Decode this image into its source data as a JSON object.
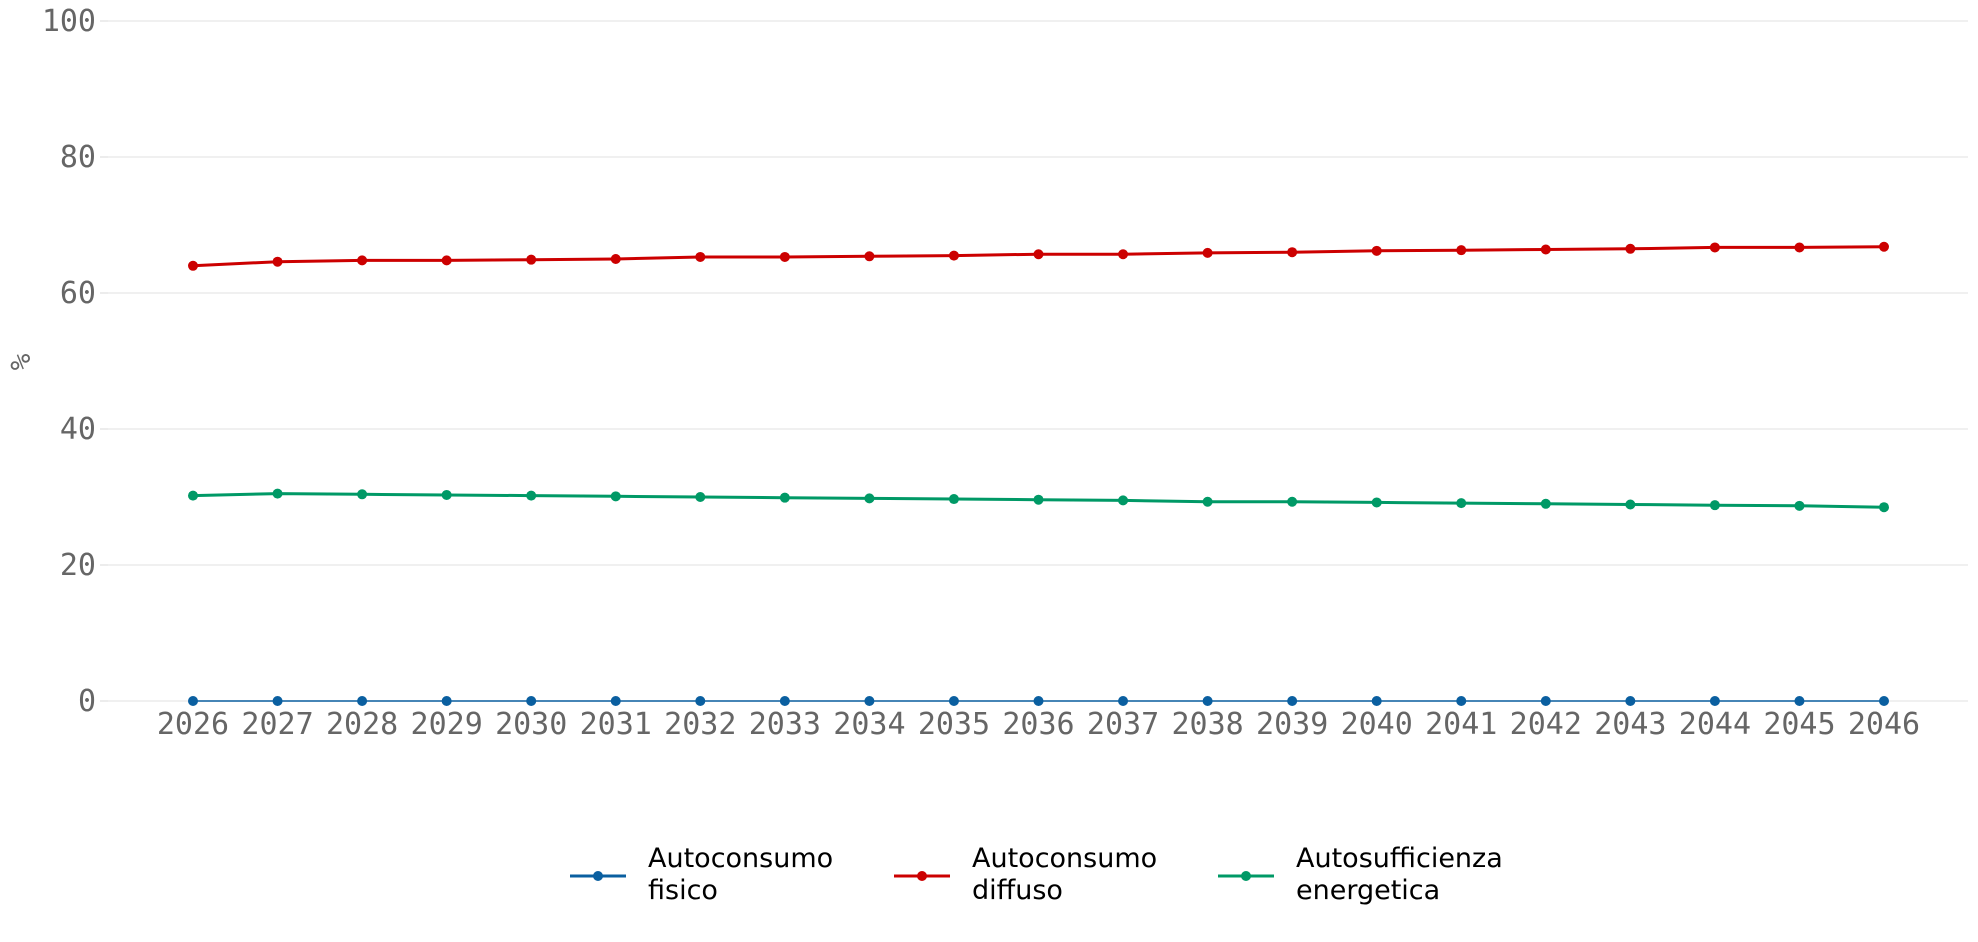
{
  "chart_data": {
    "type": "line",
    "title": "",
    "xlabel": "",
    "ylabel": "%",
    "ylim": [
      0,
      100
    ],
    "yticks": [
      0,
      20,
      40,
      60,
      80,
      100
    ],
    "grid": true,
    "legend_position": "bottom",
    "x": [
      2026,
      2027,
      2028,
      2029,
      2030,
      2031,
      2032,
      2033,
      2034,
      2035,
      2036,
      2037,
      2038,
      2039,
      2040,
      2041,
      2042,
      2043,
      2044,
      2045,
      2046
    ],
    "series": [
      {
        "name": "Autoconsumo fisico",
        "legend_lines": [
          "Autoconsumo",
          "fisico"
        ],
        "color": "#0a5fa0",
        "values": [
          0,
          0,
          0,
          0,
          0,
          0,
          0,
          0,
          0,
          0,
          0,
          0,
          0,
          0,
          0,
          0,
          0,
          0,
          0,
          0,
          0
        ]
      },
      {
        "name": "Autoconsumo diffuso",
        "legend_lines": [
          "Autoconsumo",
          "diffuso"
        ],
        "color": "#cc0000",
        "values": [
          64.0,
          64.6,
          64.8,
          64.8,
          64.9,
          65.0,
          65.3,
          65.3,
          65.4,
          65.5,
          65.7,
          65.7,
          65.9,
          66.0,
          66.2,
          66.3,
          66.4,
          66.5,
          66.7,
          66.7,
          66.8
        ]
      },
      {
        "name": "Autosufficienza energetica",
        "legend_lines": [
          "Autosufficienza",
          "energetica"
        ],
        "color": "#009966",
        "values": [
          30.2,
          30.5,
          30.4,
          30.3,
          30.2,
          30.1,
          30.0,
          29.9,
          29.8,
          29.7,
          29.6,
          29.5,
          29.3,
          29.3,
          29.2,
          29.1,
          29.0,
          28.9,
          28.8,
          28.7,
          28.5
        ]
      }
    ]
  },
  "colors": {
    "grid": "#e6e6e6",
    "tick_text": "#666666"
  }
}
